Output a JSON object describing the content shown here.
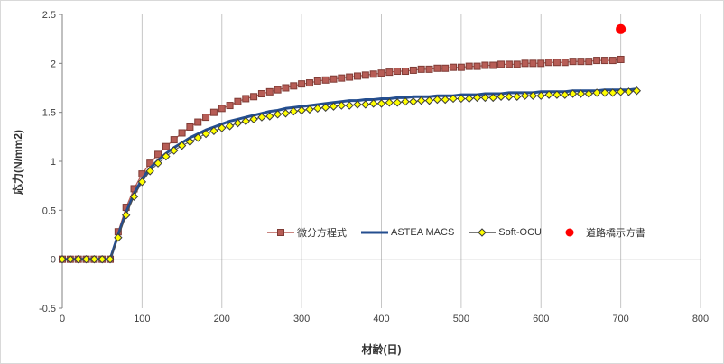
{
  "figure": {
    "background": "#ffffff",
    "border_color": "#d9d9d9",
    "text_color": "#404040",
    "grid_color": "#c6c6c6",
    "axis_color": "#808080"
  },
  "chart_data": {
    "type": "line",
    "title": "",
    "xlabel": "材齢(日)",
    "ylabel": "応力(N/mm2)",
    "xlim": [
      0,
      800
    ],
    "ylim": [
      -0.5,
      2.5
    ],
    "xtick_step": 100,
    "ytick_step": 0.5,
    "grid": {
      "vertical": true,
      "horizontal": false,
      "color": "#c6c6c6"
    },
    "axis_color": "#808080",
    "tick_label_color": "#404040",
    "legend_position": "inside-center-low",
    "series": [
      {
        "name": "微分方程式",
        "marker": "square",
        "marker_fill": "#b75d56",
        "marker_stroke": "#7f3b35",
        "line_color": "#b75d56",
        "line_width": 1.25,
        "x_start": 0,
        "x_step": 10,
        "values": [
          0,
          0,
          0,
          0,
          0,
          0,
          0,
          0.28,
          0.53,
          0.72,
          0.87,
          0.98,
          1.07,
          1.15,
          1.22,
          1.29,
          1.35,
          1.4,
          1.45,
          1.5,
          1.54,
          1.57,
          1.61,
          1.64,
          1.66,
          1.69,
          1.71,
          1.73,
          1.75,
          1.77,
          1.79,
          1.8,
          1.82,
          1.83,
          1.84,
          1.85,
          1.86,
          1.87,
          1.88,
          1.89,
          1.9,
          1.91,
          1.92,
          1.92,
          1.93,
          1.94,
          1.94,
          1.95,
          1.95,
          1.96,
          1.96,
          1.97,
          1.97,
          1.98,
          1.98,
          1.99,
          1.99,
          1.99,
          2.0,
          2.0,
          2.0,
          2.01,
          2.01,
          2.01,
          2.02,
          2.02,
          2.02,
          2.03,
          2.03,
          2.03,
          2.04
        ]
      },
      {
        "name": "ASTEA MACS",
        "marker": "none",
        "marker_fill": "none",
        "marker_stroke": "none",
        "line_color": "#244e8f",
        "line_width": 3,
        "x_start": 0,
        "x_step": 10,
        "values": [
          0,
          0,
          0,
          0,
          0,
          0,
          0,
          0.25,
          0.48,
          0.67,
          0.82,
          0.93,
          1.01,
          1.08,
          1.14,
          1.19,
          1.24,
          1.28,
          1.32,
          1.35,
          1.38,
          1.41,
          1.43,
          1.45,
          1.47,
          1.49,
          1.51,
          1.52,
          1.54,
          1.55,
          1.56,
          1.57,
          1.58,
          1.59,
          1.6,
          1.61,
          1.62,
          1.62,
          1.63,
          1.63,
          1.64,
          1.64,
          1.65,
          1.65,
          1.66,
          1.66,
          1.66,
          1.67,
          1.67,
          1.67,
          1.68,
          1.68,
          1.68,
          1.69,
          1.69,
          1.69,
          1.7,
          1.7,
          1.7,
          1.7,
          1.71,
          1.71,
          1.71,
          1.71,
          1.72,
          1.72,
          1.72,
          1.72,
          1.73,
          1.73,
          1.73,
          1.73,
          1.74
        ]
      },
      {
        "name": "Soft-OCU",
        "marker": "diamond",
        "marker_fill": "#ffff00",
        "marker_stroke": "#3b3b3b",
        "line_color": "#4d4d4d",
        "line_width": 1,
        "x_start": 0,
        "x_step": 10,
        "values": [
          0,
          0,
          0,
          0,
          0,
          0,
          0,
          0.22,
          0.45,
          0.64,
          0.79,
          0.9,
          0.98,
          1.05,
          1.11,
          1.16,
          1.2,
          1.24,
          1.28,
          1.31,
          1.34,
          1.36,
          1.39,
          1.41,
          1.43,
          1.45,
          1.46,
          1.48,
          1.49,
          1.51,
          1.52,
          1.53,
          1.54,
          1.55,
          1.56,
          1.57,
          1.57,
          1.58,
          1.58,
          1.59,
          1.59,
          1.6,
          1.6,
          1.61,
          1.61,
          1.62,
          1.62,
          1.63,
          1.63,
          1.64,
          1.64,
          1.64,
          1.65,
          1.65,
          1.65,
          1.66,
          1.66,
          1.66,
          1.67,
          1.67,
          1.67,
          1.68,
          1.68,
          1.68,
          1.69,
          1.69,
          1.69,
          1.7,
          1.7,
          1.7,
          1.71,
          1.71,
          1.72
        ]
      }
    ],
    "point_series": [
      {
        "name": "道路橋示方書",
        "marker": "circle",
        "color": "#ff0000",
        "points": [
          [
            700,
            2.35
          ]
        ]
      }
    ]
  }
}
